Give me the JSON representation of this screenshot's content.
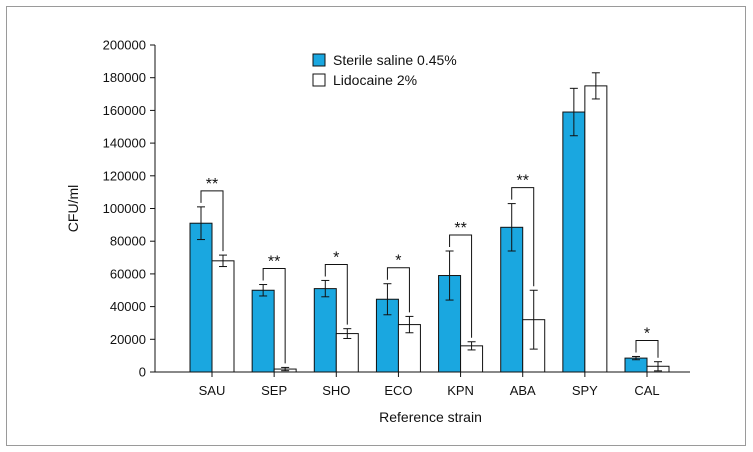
{
  "chart_data": {
    "type": "bar",
    "xlabel": "Reference strain",
    "ylabel": "CFU/ml",
    "ylim": [
      0,
      200000
    ],
    "yticks": [
      0,
      20000,
      40000,
      60000,
      80000,
      100000,
      120000,
      140000,
      160000,
      180000,
      200000
    ],
    "categories": [
      "SAU",
      "SEP",
      "SHO",
      "ECO",
      "KPN",
      "ABA",
      "SPY",
      "CAL"
    ],
    "legend_position": "top-center",
    "grid": false,
    "series": [
      {
        "name": "Sterile saline 0.45%",
        "color": "#1aa7e0",
        "values": [
          91000,
          50000,
          51000,
          44500,
          59000,
          88500,
          159000,
          8500
        ],
        "errors": [
          10000,
          3500,
          5000,
          9500,
          15000,
          14500,
          14500,
          1000
        ]
      },
      {
        "name": "Lidocaine 2%",
        "color": "#ffffff",
        "values": [
          68000,
          1800,
          23500,
          29000,
          16000,
          32000,
          175000,
          3500
        ],
        "errors": [
          3500,
          1000,
          3000,
          5000,
          2500,
          18000,
          8000,
          2800
        ]
      }
    ],
    "significance": [
      {
        "category": "SAU",
        "label": "**"
      },
      {
        "category": "SEP",
        "label": "**"
      },
      {
        "category": "SHO",
        "label": "*"
      },
      {
        "category": "ECO",
        "label": "*"
      },
      {
        "category": "KPN",
        "label": "**"
      },
      {
        "category": "ABA",
        "label": "**"
      },
      {
        "category": "CAL",
        "label": "*"
      }
    ]
  }
}
